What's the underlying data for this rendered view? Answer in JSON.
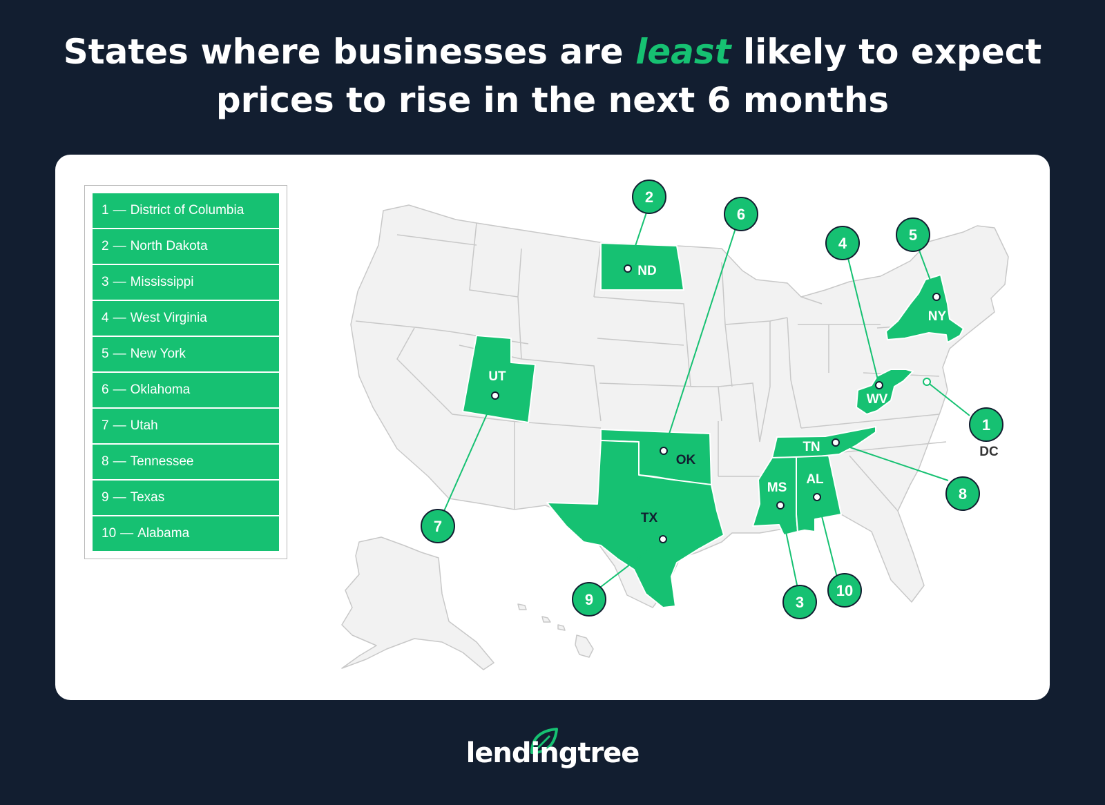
{
  "title": {
    "before": "States where businesses are ",
    "highlight": "least",
    "after": " likely to expect prices to rise in the next 6 months"
  },
  "legend": [
    {
      "rank": "1",
      "name": "District of Columbia"
    },
    {
      "rank": "2",
      "name": "North Dakota"
    },
    {
      "rank": "3",
      "name": "Mississippi"
    },
    {
      "rank": "4",
      "name": "West Virginia"
    },
    {
      "rank": "5",
      "name": "New York"
    },
    {
      "rank": "6",
      "name": "Oklahoma"
    },
    {
      "rank": "7",
      "name": "Utah"
    },
    {
      "rank": "8",
      "name": "Tennessee"
    },
    {
      "rank": "9",
      "name": "Texas"
    },
    {
      "rank": "10",
      "name": "Alabama"
    }
  ],
  "legend_dash": "—",
  "states": [
    {
      "abbr": "DC",
      "rank": "1"
    },
    {
      "abbr": "ND",
      "rank": "2"
    },
    {
      "abbr": "MS",
      "rank": "3"
    },
    {
      "abbr": "WV",
      "rank": "4"
    },
    {
      "abbr": "NY",
      "rank": "5"
    },
    {
      "abbr": "OK",
      "rank": "6"
    },
    {
      "abbr": "UT",
      "rank": "7"
    },
    {
      "abbr": "TN",
      "rank": "8"
    },
    {
      "abbr": "TX",
      "rank": "9"
    },
    {
      "abbr": "AL",
      "rank": "10"
    }
  ],
  "colors": {
    "background": "#121e30",
    "highlight": "#16c172",
    "state_fill": "#f2f2f2",
    "state_border": "#c8c8c8"
  },
  "logo": {
    "text": "lendingtree",
    "icon": "leaf-icon"
  }
}
